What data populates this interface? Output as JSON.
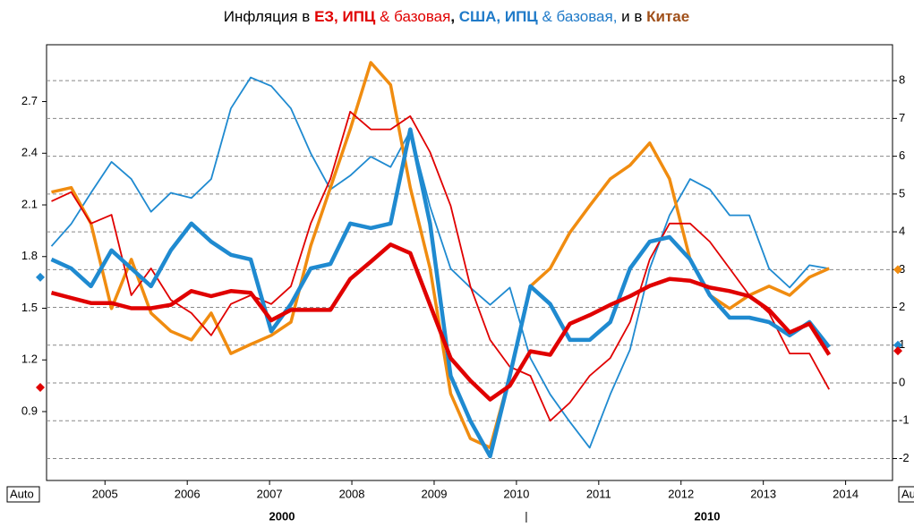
{
  "chart_data": {
    "type": "line",
    "title_parts": [
      {
        "text": "Инфляция в ",
        "color": "#000000",
        "bold": false
      },
      {
        "text": "ЕЗ, ИПЦ",
        "color": "#e00000",
        "bold": true
      },
      {
        "text": " & базовая",
        "color": "#e00000",
        "bold": false
      },
      {
        "text": ", ",
        "color": "#000000",
        "bold": true
      },
      {
        "text": "США, ИПЦ",
        "color": "#1f7ac8",
        "bold": true
      },
      {
        "text": " & базовая,",
        "color": "#1f7ac8",
        "bold": false
      },
      {
        "text": " и в ",
        "color": "#000000",
        "bold": false
      },
      {
        "text": "Китае",
        "color": "#a0501a",
        "bold": true
      }
    ],
    "x": [
      2004.35,
      2004.59,
      2004.83,
      2005.08,
      2005.32,
      2005.56,
      2005.8,
      2006.05,
      2006.29,
      2006.53,
      2006.77,
      2007.02,
      2007.26,
      2007.5,
      2007.74,
      2007.98,
      2008.23,
      2008.47,
      2008.71,
      2008.95,
      2009.2,
      2009.44,
      2009.68,
      2009.92,
      2010.17,
      2010.41,
      2010.65,
      2010.89,
      2011.14,
      2011.38,
      2011.62,
      2011.86,
      2012.11,
      2012.35,
      2012.59,
      2012.83,
      2013.07,
      2013.32,
      2013.56,
      2013.8
    ],
    "xlim": [
      2004.29,
      2014.57
    ],
    "xticks": [
      2005,
      2006,
      2007,
      2008,
      2009,
      2010,
      2011,
      2012,
      2013,
      2014
    ],
    "x2_labels": [
      "2000",
      "2010"
    ],
    "ylim": [
      0.5,
      3.03
    ],
    "yticks": [
      0.9,
      1.2,
      1.5,
      1.8,
      2.1,
      2.4,
      2.7
    ],
    "y2lim": [
      -2.58,
      8.95
    ],
    "y2ticks": [
      -2,
      -1,
      0,
      1,
      2,
      3,
      4,
      5,
      6,
      7,
      8
    ],
    "grid": true,
    "series": [
      {
        "color": "#1f8ad0",
        "width": 1.8,
        "axis": "y",
        "values": [
          1.86,
          1.99,
          2.17,
          2.35,
          2.25,
          2.06,
          2.17,
          2.14,
          2.25,
          2.66,
          2.84,
          2.79,
          2.66,
          2.4,
          2.19,
          2.27,
          2.38,
          2.32,
          2.53,
          2.09,
          1.73,
          1.62,
          1.52,
          1.62,
          1.21,
          1.0,
          0.84,
          0.69,
          1.0,
          1.26,
          1.73,
          2.04,
          2.25,
          2.19,
          2.04,
          2.04,
          1.73,
          1.62,
          1.75,
          1.73
        ]
      },
      {
        "color": "#f08c10",
        "width": 3.5,
        "axis": "y2",
        "values": [
          5.05,
          5.17,
          4.22,
          1.97,
          3.27,
          1.85,
          1.37,
          1.14,
          1.85,
          0.78,
          1.02,
          1.26,
          1.61,
          3.63,
          5.17,
          6.71,
          8.48,
          7.89,
          5.17,
          3.03,
          -0.28,
          -1.47,
          -1.71,
          0.19,
          2.56,
          3.03,
          3.98,
          4.69,
          5.4,
          5.76,
          6.35,
          5.4,
          3.27,
          2.32,
          1.97,
          2.32,
          2.56,
          2.32,
          2.8,
          3.03
        ]
      },
      {
        "color": "#e00000",
        "width": 1.8,
        "axis": "y2",
        "values": [
          4.81,
          5.05,
          4.22,
          4.45,
          2.32,
          3.03,
          2.2,
          1.85,
          1.26,
          2.09,
          2.32,
          2.09,
          2.56,
          4.22,
          5.4,
          7.18,
          6.71,
          6.71,
          7.06,
          6.11,
          4.69,
          2.56,
          1.14,
          0.43,
          0.19,
          -1.0,
          -0.52,
          0.19,
          0.66,
          1.61,
          3.27,
          4.22,
          4.22,
          3.74,
          3.03,
          2.32,
          1.85,
          0.78,
          0.78,
          -0.17
        ]
      },
      {
        "color": "#1f8ad0",
        "width": 4.5,
        "axis": "y2",
        "values": [
          3.27,
          3.03,
          2.56,
          3.51,
          3.03,
          2.56,
          3.51,
          4.22,
          3.74,
          3.39,
          3.27,
          1.37,
          2.09,
          3.03,
          3.15,
          4.22,
          4.1,
          4.22,
          6.71,
          4.22,
          0.19,
          -1.0,
          -1.94,
          0.19,
          2.56,
          2.09,
          1.14,
          1.14,
          1.61,
          3.03,
          3.74,
          3.86,
          3.27,
          2.32,
          1.73,
          1.73,
          1.61,
          1.26,
          1.61,
          0.95
        ]
      },
      {
        "color": "#e00000",
        "width": 4.5,
        "axis": "y",
        "values": [
          1.59,
          1.56,
          1.53,
          1.53,
          1.5,
          1.5,
          1.52,
          1.6,
          1.57,
          1.6,
          1.59,
          1.43,
          1.49,
          1.49,
          1.49,
          1.67,
          1.77,
          1.87,
          1.82,
          1.52,
          1.21,
          1.08,
          0.97,
          1.05,
          1.25,
          1.23,
          1.41,
          1.46,
          1.52,
          1.57,
          1.63,
          1.67,
          1.66,
          1.62,
          1.6,
          1.57,
          1.49,
          1.36,
          1.41,
          1.23
        ]
      }
    ],
    "axis_markers": [
      {
        "axis": "y",
        "color": "#1f8ad0",
        "value": 1.68
      },
      {
        "axis": "y",
        "color": "#e00000",
        "value": 1.04
      },
      {
        "axis": "y2",
        "color": "#1f8ad0",
        "value": 1
      },
      {
        "axis": "y2",
        "color": "#e00000",
        "value": 0.85
      },
      {
        "axis": "y2",
        "color": "#f08c10",
        "value": 3
      }
    ],
    "buttons": [
      "Auto",
      "Auto"
    ]
  }
}
